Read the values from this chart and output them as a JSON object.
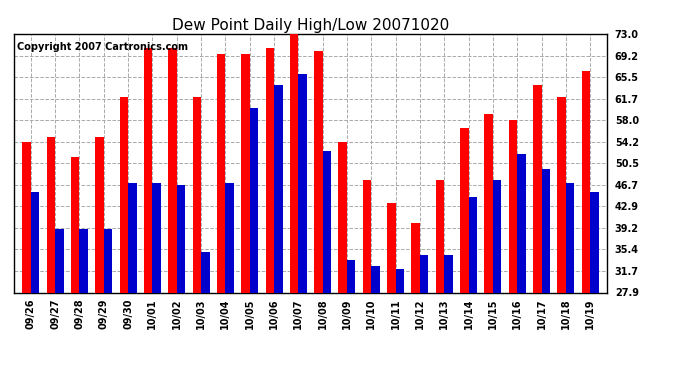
{
  "title": "Dew Point Daily High/Low 20071020",
  "copyright": "Copyright 2007 Cartronics.com",
  "dates": [
    "09/26",
    "09/27",
    "09/28",
    "09/29",
    "09/30",
    "10/01",
    "10/02",
    "10/03",
    "10/04",
    "10/05",
    "10/06",
    "10/07",
    "10/08",
    "10/09",
    "10/10",
    "10/11",
    "10/12",
    "10/13",
    "10/14",
    "10/15",
    "10/16",
    "10/17",
    "10/18",
    "10/19"
  ],
  "highs": [
    54.2,
    55.0,
    51.5,
    55.0,
    62.0,
    70.5,
    70.5,
    62.0,
    69.5,
    69.5,
    70.5,
    73.0,
    70.0,
    54.2,
    47.5,
    43.5,
    40.0,
    47.5,
    56.5,
    59.0,
    58.0,
    64.0,
    62.0,
    66.5
  ],
  "lows": [
    45.5,
    39.0,
    39.0,
    39.0,
    47.0,
    47.0,
    46.7,
    35.0,
    47.0,
    60.0,
    64.0,
    66.0,
    52.5,
    33.5,
    32.5,
    32.0,
    34.5,
    34.5,
    44.5,
    47.5,
    52.0,
    49.5,
    47.0,
    45.5
  ],
  "ylim_low": 27.9,
  "ylim_high": 73.0,
  "yticks": [
    27.9,
    31.7,
    35.4,
    39.2,
    42.9,
    46.7,
    50.5,
    54.2,
    58.0,
    61.7,
    65.5,
    69.2,
    73.0
  ],
  "high_color": "#ff0000",
  "low_color": "#0000cc",
  "bg_color": "#ffffff",
  "grid_color": "#aaaaaa",
  "bar_width": 0.35,
  "title_fontsize": 11,
  "tick_fontsize": 7,
  "copyright_fontsize": 7
}
